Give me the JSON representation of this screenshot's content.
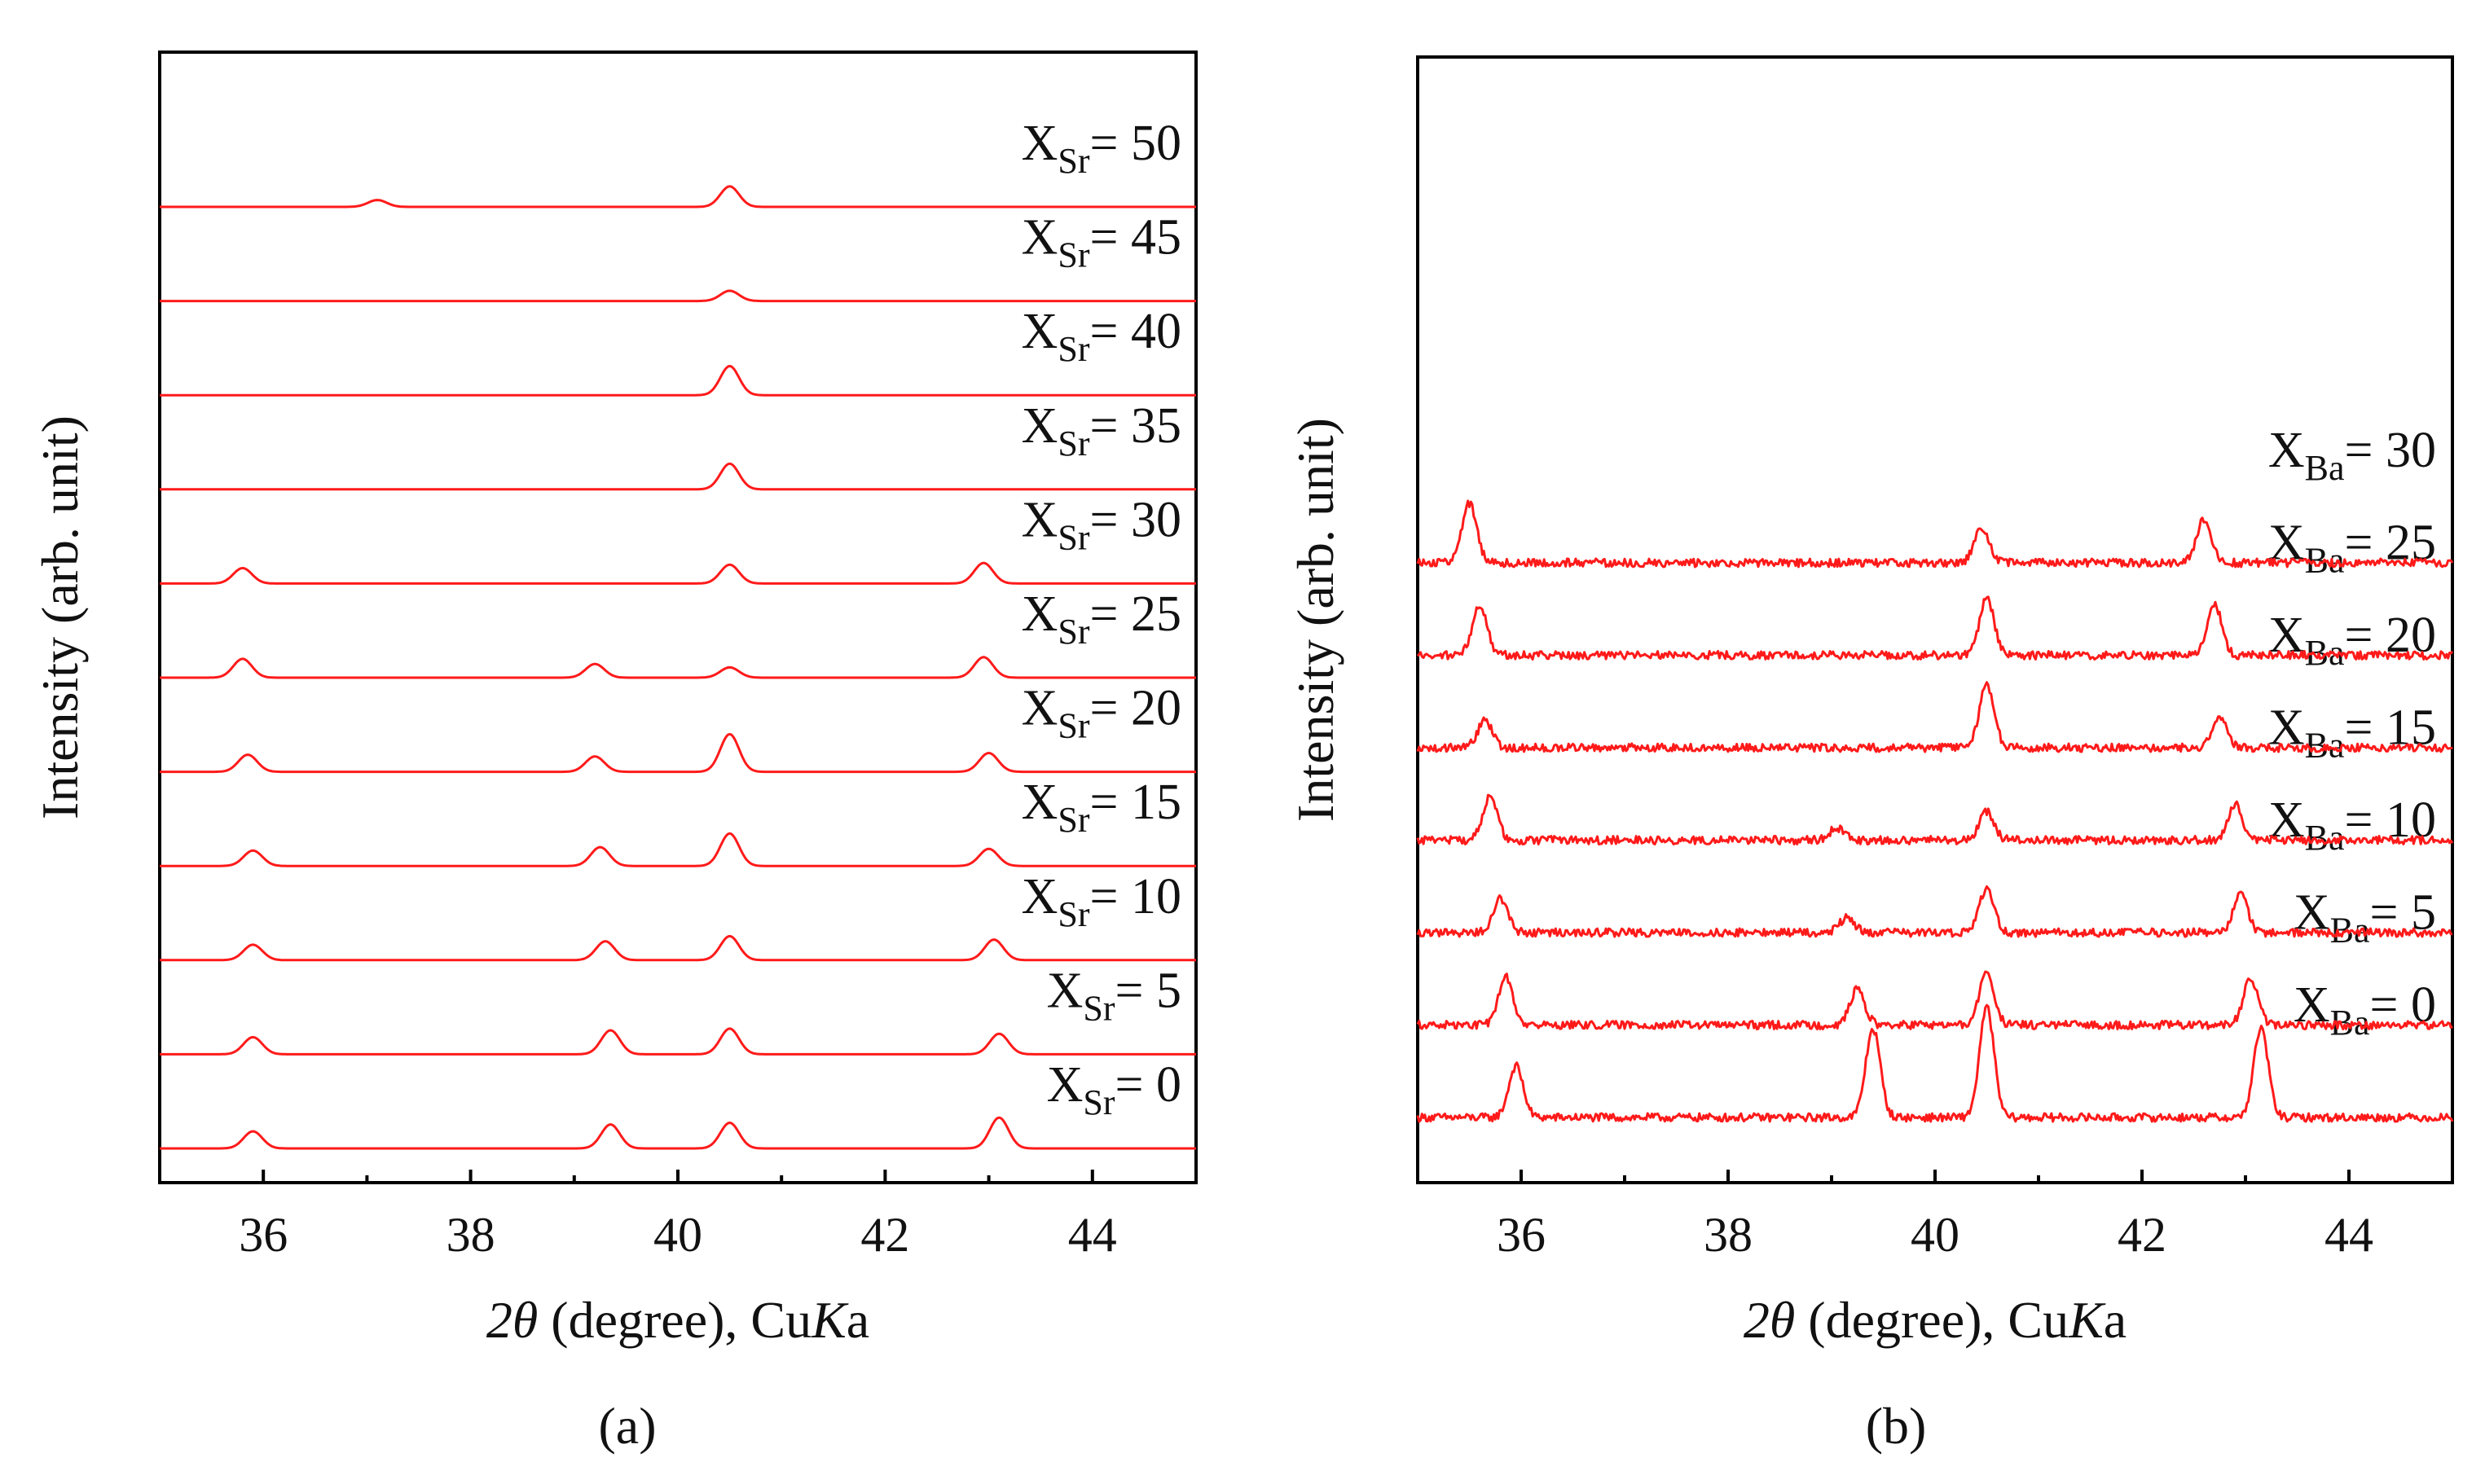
{
  "figure": {
    "accent": "#ff1a1a"
  },
  "chart_data": [
    {
      "type": "line",
      "panel_label": "(a)",
      "title": "",
      "xlabel_symbol": "2θ",
      "xlabel_text": " (degree), Cu",
      "xlabel_italic": "K",
      "xlabel_tail": "a",
      "ylabel": "Intensity (arb. unit)",
      "xlim": [
        35,
        45
      ],
      "x_ticks": [
        36,
        38,
        40,
        42,
        44
      ],
      "x_tick_labels": [
        "36",
        "38",
        "40",
        "42",
        "44"
      ],
      "y_ticks_visible": false,
      "peak_width": 0.09,
      "noise": 0,
      "series": [
        {
          "label_base": "X",
          "label_sub": "Sr",
          "label_value": "= 0",
          "peaks": [
            [
              35.9,
              0.5
            ],
            [
              39.35,
              0.7
            ],
            [
              40.5,
              0.75
            ],
            [
              43.1,
              0.9
            ]
          ]
        },
        {
          "label_base": "X",
          "label_sub": "Sr",
          "label_value": "= 5",
          "peaks": [
            [
              35.9,
              0.5
            ],
            [
              39.35,
              0.7
            ],
            [
              40.5,
              0.75
            ],
            [
              43.1,
              0.6
            ]
          ]
        },
        {
          "label_base": "X",
          "label_sub": "Sr",
          "label_value": "= 10",
          "peaks": [
            [
              35.9,
              0.45
            ],
            [
              39.3,
              0.55
            ],
            [
              40.5,
              0.7
            ],
            [
              43.05,
              0.6
            ]
          ]
        },
        {
          "label_base": "X",
          "label_sub": "Sr",
          "label_value": "= 15",
          "peaks": [
            [
              35.9,
              0.45
            ],
            [
              39.25,
              0.55
            ],
            [
              40.5,
              0.95
            ],
            [
              43.0,
              0.5
            ]
          ]
        },
        {
          "label_base": "X",
          "label_sub": "Sr",
          "label_value": "= 20",
          "peaks": [
            [
              35.85,
              0.5
            ],
            [
              39.2,
              0.45
            ],
            [
              40.5,
              1.1
            ],
            [
              43.0,
              0.55
            ]
          ]
        },
        {
          "label_base": "X",
          "label_sub": "Sr",
          "label_value": "= 25",
          "peaks": [
            [
              35.8,
              0.55
            ],
            [
              39.2,
              0.4
            ],
            [
              40.5,
              0.3
            ],
            [
              42.95,
              0.6
            ]
          ]
        },
        {
          "label_base": "X",
          "label_sub": "Sr",
          "label_value": "= 30",
          "peaks": [
            [
              35.8,
              0.45
            ],
            [
              40.5,
              0.55
            ],
            [
              42.95,
              0.6
            ]
          ]
        },
        {
          "label_base": "X",
          "label_sub": "Sr",
          "label_value": "= 35",
          "peaks": [
            [
              40.5,
              0.75
            ]
          ]
        },
        {
          "label_base": "X",
          "label_sub": "Sr",
          "label_value": "= 40",
          "peaks": [
            [
              40.5,
              0.85
            ]
          ]
        },
        {
          "label_base": "X",
          "label_sub": "Sr",
          "label_value": "= 45",
          "peaks": [
            [
              40.5,
              0.3
            ]
          ]
        },
        {
          "label_base": "X",
          "label_sub": "Sr",
          "label_value": "= 50",
          "peaks": [
            [
              37.1,
              0.2
            ],
            [
              40.5,
              0.6
            ]
          ]
        }
      ]
    },
    {
      "type": "line",
      "panel_label": "(b)",
      "title": "",
      "xlabel_symbol": "2θ",
      "xlabel_text": " (degree), Cu",
      "xlabel_italic": "K",
      "xlabel_tail": "a",
      "ylabel": "Intensity (arb. unit)",
      "xlim": [
        35,
        45
      ],
      "x_ticks": [
        36,
        38,
        40,
        42,
        44
      ],
      "x_tick_labels": [
        "36",
        "38",
        "40",
        "42",
        "44"
      ],
      "y_ticks_visible": false,
      "peak_width": 0.07,
      "noise": 0.12,
      "series": [
        {
          "label_base": "X",
          "label_sub": "Ba",
          "label_value": "= 0",
          "peaks": [
            [
              35.95,
              1.5
            ],
            [
              39.4,
              2.6
            ],
            [
              40.5,
              3.2
            ],
            [
              43.15,
              2.6
            ]
          ]
        },
        {
          "label_base": "X",
          "label_sub": "Ba",
          "label_value": "= 5",
          "peaks": [
            [
              35.85,
              1.4
            ],
            [
              39.25,
              1.05
            ],
            [
              40.5,
              1.55
            ],
            [
              43.05,
              1.35
            ]
          ]
        },
        {
          "label_base": "X",
          "label_sub": "Ba",
          "label_value": "= 10",
          "peaks": [
            [
              35.8,
              1.0
            ],
            [
              39.15,
              0.45
            ],
            [
              40.5,
              1.3
            ],
            [
              42.95,
              1.1
            ]
          ]
        },
        {
          "label_base": "X",
          "label_sub": "Ba",
          "label_value": "= 15",
          "peaks": [
            [
              35.7,
              1.3
            ],
            [
              39.05,
              0.35
            ],
            [
              40.5,
              0.85
            ],
            [
              42.9,
              1.05
            ]
          ]
        },
        {
          "label_base": "X",
          "label_sub": "Ba",
          "label_value": "= 20",
          "peaks": [
            [
              35.65,
              0.8
            ],
            [
              40.5,
              1.85
            ],
            [
              42.75,
              0.9
            ]
          ]
        },
        {
          "label_base": "X",
          "label_sub": "Ba",
          "label_value": "= 25",
          "peaks": [
            [
              35.6,
              1.5
            ],
            [
              40.5,
              1.65
            ],
            [
              42.7,
              1.5
            ]
          ]
        },
        {
          "label_base": "X",
          "label_sub": "Ba",
          "label_value": "= 30",
          "peaks": [
            [
              35.5,
              1.75
            ],
            [
              40.45,
              1.0
            ],
            [
              42.6,
              1.3
            ]
          ]
        }
      ]
    }
  ]
}
